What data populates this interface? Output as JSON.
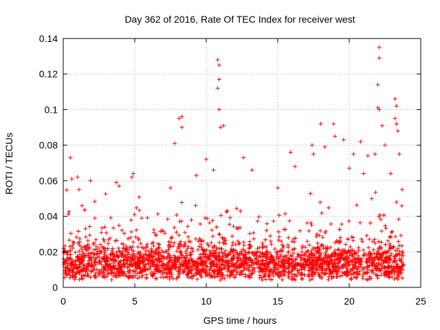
{
  "chart_data": {
    "type": "scatter",
    "title": "Day 362 of 2016, Rate Of TEC Index for receiver west",
    "xlabel": "GPS time / hours",
    "ylabel": "ROTI / TECUs",
    "xlim": [
      0,
      25
    ],
    "ylim": [
      0,
      0.14
    ],
    "xticks": [
      0,
      5,
      10,
      15,
      20,
      25
    ],
    "xtick_labels": [
      "0",
      "5",
      "10",
      "15",
      "20",
      "25"
    ],
    "yticks": [
      0,
      0.02,
      0.04,
      0.06,
      0.08,
      0.1,
      0.12,
      0.14
    ],
    "ytick_labels": [
      "0",
      "0.02",
      "0.04",
      "0.06",
      "0.08",
      "0.1",
      "0.12",
      "0.14"
    ],
    "grid": true,
    "marker": "+",
    "color": "#ff0000",
    "data_range_x": [
      0,
      23.8
    ],
    "series": [
      {
        "name": "ROTI",
        "note": "dense band 0.005-0.03 throughout the day; notable peaks listed",
        "points": [
          [
            0.5,
            0.073
          ],
          [
            0.6,
            0.061
          ],
          [
            1.0,
            0.062
          ],
          [
            1.1,
            0.055
          ],
          [
            1.9,
            0.06
          ],
          [
            3.7,
            0.059
          ],
          [
            3.9,
            0.057
          ],
          [
            4.8,
            0.062
          ],
          [
            4.9,
            0.064
          ],
          [
            7.5,
            0.056
          ],
          [
            7.8,
            0.081
          ],
          [
            8.1,
            0.095
          ],
          [
            8.3,
            0.096
          ],
          [
            8.3,
            0.09
          ],
          [
            9.3,
            0.063
          ],
          [
            10.0,
            0.072
          ],
          [
            10.5,
            0.066
          ],
          [
            10.8,
            0.128
          ],
          [
            10.9,
            0.125
          ],
          [
            10.9,
            0.117
          ],
          [
            10.8,
            0.112
          ],
          [
            10.9,
            0.1
          ],
          [
            11.0,
            0.09
          ],
          [
            11.2,
            0.091
          ],
          [
            12.6,
            0.073
          ],
          [
            13.2,
            0.066
          ],
          [
            15.0,
            0.056
          ],
          [
            15.9,
            0.076
          ],
          [
            16.2,
            0.068
          ],
          [
            17.4,
            0.08
          ],
          [
            17.5,
            0.075
          ],
          [
            18.0,
            0.092
          ],
          [
            18.3,
            0.079
          ],
          [
            18.9,
            0.092
          ],
          [
            19.0,
            0.085
          ],
          [
            19.6,
            0.083
          ],
          [
            20.0,
            0.067
          ],
          [
            20.3,
            0.075
          ],
          [
            20.8,
            0.082
          ],
          [
            21.0,
            0.064
          ],
          [
            21.3,
            0.074
          ],
          [
            21.8,
            0.075
          ],
          [
            22.0,
            0.114
          ],
          [
            22.1,
            0.135
          ],
          [
            22.1,
            0.129
          ],
          [
            22.0,
            0.101
          ],
          [
            22.1,
            0.1
          ],
          [
            22.3,
            0.091
          ],
          [
            22.5,
            0.08
          ],
          [
            22.9,
            0.064
          ],
          [
            23.2,
            0.106
          ],
          [
            23.3,
            0.102
          ],
          [
            23.2,
            0.095
          ],
          [
            23.3,
            0.092
          ],
          [
            23.4,
            0.088
          ],
          [
            23.5,
            0.075
          ],
          [
            23.7,
            0.055
          ]
        ]
      }
    ]
  }
}
